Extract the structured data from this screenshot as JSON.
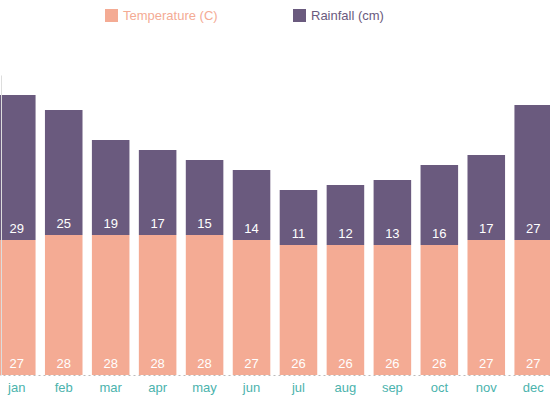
{
  "chart_data": {
    "type": "bar",
    "stacked": true,
    "data_labels": true,
    "tick_labels": "x",
    "legend": "top",
    "categories": [
      "jan",
      "feb",
      "mar",
      "apr",
      "may",
      "jun",
      "jul",
      "aug",
      "sep",
      "oct",
      "nov",
      "dec"
    ],
    "series": [
      {
        "name": "Temperature (C)",
        "color": "#f4ab94",
        "values": [
          27,
          28,
          28,
          28,
          28,
          27,
          26,
          26,
          26,
          26,
          27,
          27
        ]
      },
      {
        "name": "Rainfall (cm)",
        "color": "#6a5a7e",
        "values": [
          29,
          25,
          19,
          17,
          15,
          14,
          11,
          12,
          13,
          16,
          17,
          27
        ]
      }
    ],
    "ylim": [
      0,
      60
    ]
  }
}
